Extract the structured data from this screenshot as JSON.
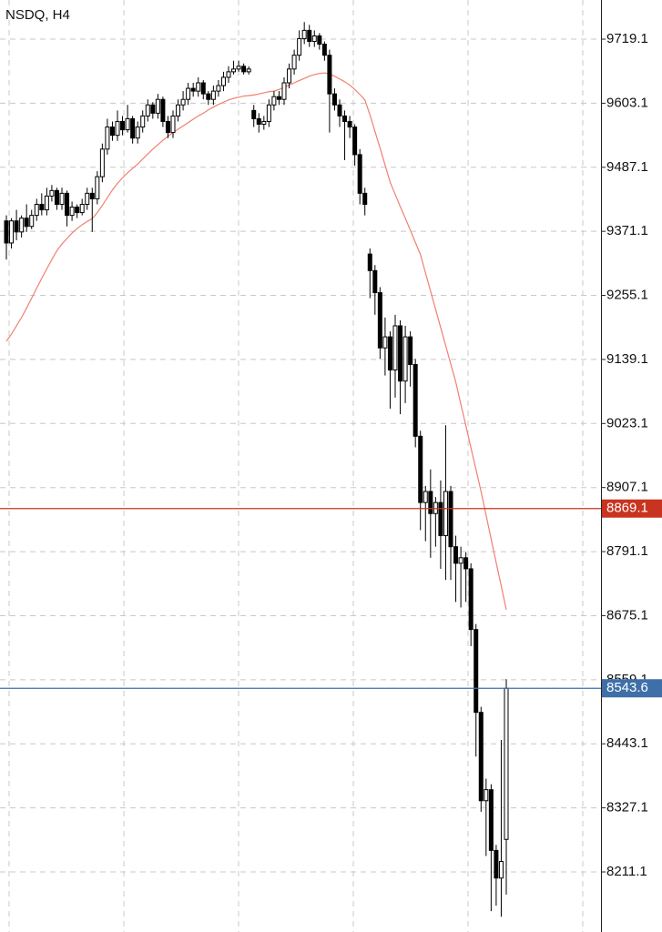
{
  "chart_data": {
    "type": "candlestick",
    "title": "NSDQ, H4",
    "ylim": [
      8102.3,
      9790.0
    ],
    "yticks": [
      9719.1,
      9603.1,
      9487.1,
      9371.1,
      9255.1,
      9139.1,
      9023.1,
      8907.1,
      8791.1,
      8675.1,
      8559.1,
      8443.1,
      8327.1,
      8211.1
    ],
    "grid": true,
    "up_color": "#ffffff",
    "down_color": "#000000",
    "ma_color": "#f08070",
    "open": [
      9390,
      9350,
      9390,
      9370,
      9395,
      9380,
      9400,
      9420,
      9410,
      9435,
      9445,
      9420,
      9440,
      9400,
      9415,
      9405,
      9420,
      9440,
      9430,
      9470,
      9520,
      9560,
      9545,
      9570,
      9555,
      9575,
      9540,
      9560,
      9580,
      9600,
      9585,
      9610,
      9570,
      9550,
      9580,
      9600,
      9610,
      9630,
      9625,
      9640,
      9620,
      9610,
      9625,
      9635,
      9650,
      9660,
      9665,
      9670,
      9660,
      9590,
      9575,
      9565,
      9570,
      9600,
      9615,
      9610,
      9640,
      9665,
      9690,
      9720,
      9735,
      9715,
      9725,
      9710,
      9690,
      9620,
      9600,
      9580,
      9570,
      9560,
      9510,
      9440,
      9330,
      9300,
      9260,
      9160,
      9180,
      9120,
      9200,
      9100,
      9180,
      9130,
      9000,
      8880,
      8900,
      8860,
      8880,
      8820,
      8900,
      8800,
      8770,
      8780,
      8760,
      8650,
      8500,
      8340,
      8360,
      8250,
      8200,
      8270
    ],
    "high": [
      9400,
      9395,
      9410,
      9400,
      9420,
      9410,
      9430,
      9440,
      9450,
      9455,
      9450,
      9450,
      9445,
      9425,
      9420,
      9430,
      9450,
      9450,
      9480,
      9530,
      9575,
      9570,
      9590,
      9580,
      9600,
      9580,
      9570,
      9590,
      9610,
      9605,
      9620,
      9615,
      9580,
      9590,
      9610,
      9625,
      9640,
      9640,
      9650,
      9645,
      9625,
      9635,
      9645,
      9660,
      9670,
      9680,
      9680,
      9675,
      9670,
      9600,
      9585,
      9580,
      9610,
      9625,
      9625,
      9650,
      9675,
      9700,
      9735,
      9750,
      9745,
      9735,
      9730,
      9715,
      9700,
      9630,
      9610,
      9590,
      9580,
      9565,
      9520,
      9450,
      9340,
      9310,
      9270,
      9215,
      9190,
      9220,
      9210,
      9200,
      9190,
      9140,
      9010,
      8910,
      8940,
      8890,
      8920,
      9020,
      8910,
      8820,
      8800,
      8790,
      8770,
      8660,
      8510,
      8380,
      8370,
      8260,
      8450,
      8560
    ],
    "low": [
      9320,
      9340,
      9355,
      9360,
      9370,
      9375,
      9390,
      9400,
      9400,
      9425,
      9410,
      9410,
      9380,
      9390,
      9395,
      9400,
      9410,
      9370,
      9420,
      9460,
      9510,
      9535,
      9535,
      9545,
      9550,
      9530,
      9530,
      9550,
      9570,
      9575,
      9575,
      9560,
      9540,
      9540,
      9570,
      9590,
      9600,
      9615,
      9615,
      9610,
      9600,
      9600,
      9615,
      9625,
      9640,
      9655,
      9660,
      9655,
      9655,
      9560,
      9550,
      9555,
      9560,
      9590,
      9600,
      9600,
      9630,
      9655,
      9680,
      9710,
      9705,
      9705,
      9700,
      9680,
      9550,
      9590,
      9560,
      9500,
      9540,
      9490,
      9420,
      9400,
      9250,
      9220,
      9140,
      9110,
      9050,
      9070,
      9040,
      9060,
      9090,
      8980,
      8830,
      8810,
      8780,
      8800,
      8760,
      8740,
      8740,
      8700,
      8690,
      8700,
      8620,
      8420,
      8320,
      8240,
      8140,
      8150,
      8130,
      8170
    ],
    "close": [
      9350,
      9390,
      9370,
      9395,
      9380,
      9400,
      9420,
      9410,
      9435,
      9445,
      9420,
      9440,
      9400,
      9415,
      9405,
      9420,
      9440,
      9430,
      9470,
      9520,
      9560,
      9545,
      9570,
      9555,
      9575,
      9540,
      9560,
      9580,
      9600,
      9585,
      9610,
      9570,
      9550,
      9580,
      9600,
      9610,
      9630,
      9625,
      9640,
      9620,
      9610,
      9625,
      9635,
      9650,
      9660,
      9665,
      9670,
      9660,
      9665,
      9575,
      9565,
      9570,
      9600,
      9615,
      9610,
      9640,
      9665,
      9690,
      9720,
      9735,
      9715,
      9725,
      9710,
      9690,
      9620,
      9600,
      9580,
      9570,
      9560,
      9510,
      9440,
      9420,
      9300,
      9260,
      9160,
      9180,
      9120,
      9200,
      9100,
      9180,
      9130,
      9000,
      8880,
      8900,
      8860,
      8880,
      8820,
      8900,
      8800,
      8770,
      8780,
      8760,
      8650,
      8500,
      8340,
      8360,
      8250,
      8200,
      8230,
      8543.6
    ],
    "ma": [
      9172,
      9185,
      9200,
      9215,
      9232,
      9250,
      9268,
      9286,
      9303,
      9320,
      9336,
      9348,
      9358,
      9368,
      9376,
      9383,
      9389,
      9394,
      9405,
      9418,
      9432,
      9446,
      9458,
      9468,
      9477,
      9485,
      9493,
      9502,
      9511,
      9520,
      9528,
      9536,
      9543,
      9550,
      9556,
      9562,
      9568,
      9574,
      9580,
      9585,
      9591,
      9596,
      9601,
      9605,
      9609,
      9612,
      9614,
      9616,
      9617,
      9618,
      9620,
      9622,
      9624,
      9625,
      9628,
      9632,
      9636,
      9640,
      9644,
      9648,
      9652,
      9655,
      9657,
      9658,
      9656,
      9652,
      9647,
      9642,
      9636,
      9628,
      9619,
      9609,
      9582,
      9552,
      9522,
      9491,
      9460,
      9438,
      9416,
      9395,
      9373,
      9351,
      9329,
      9296,
      9263,
      9230,
      9197,
      9164,
      9131,
      9098,
      9058,
      9019,
      8979,
      8940,
      8900,
      8857,
      8814,
      8771,
      8729,
      8686
    ],
    "price_lines": [
      {
        "value": 8869.1,
        "color": "#c8341f"
      },
      {
        "value": 8543.6,
        "color": "#3f6fa8"
      }
    ]
  }
}
